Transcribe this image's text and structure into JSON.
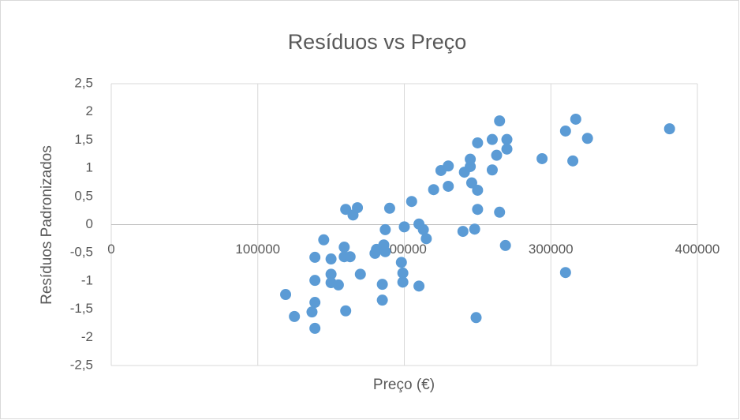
{
  "chart_data": {
    "type": "scatter",
    "title": "Resíduos vs Preço",
    "xlabel": "Preço (€)",
    "ylabel": "Resíduos Padronizados",
    "color": "#5b9bd5",
    "grid": true,
    "x": [
      119000,
      125000,
      137000,
      139000,
      139000,
      139000,
      139000,
      145000,
      150000,
      150000,
      150000,
      155000,
      159000,
      159000,
      160000,
      160000,
      163000,
      165000,
      168000,
      170000,
      180000,
      181000,
      185000,
      185000,
      186000,
      187000,
      187000,
      190000,
      198000,
      199000,
      199000,
      200000,
      205000,
      210000,
      210000,
      213000,
      215000,
      220000,
      225000,
      230000,
      230000,
      240000,
      241000,
      245000,
      245000,
      246000,
      248000,
      249000,
      250000,
      250000,
      250000,
      260000,
      260000,
      263000,
      265000,
      265000,
      269000,
      270000,
      270000,
      294000,
      310000,
      310000,
      315000,
      317000,
      325000,
      381000
    ],
    "y": [
      -1.24,
      -1.63,
      -1.55,
      -1.84,
      -1.38,
      -0.99,
      -0.58,
      -0.27,
      -0.61,
      -0.88,
      -1.03,
      -1.07,
      -0.4,
      -0.57,
      -1.53,
      0.27,
      -0.57,
      0.17,
      0.3,
      -0.88,
      -0.51,
      -0.44,
      -1.34,
      -1.06,
      -0.36,
      -0.48,
      -0.09,
      0.29,
      -0.67,
      -0.86,
      -1.02,
      -0.04,
      0.41,
      0.01,
      -1.09,
      -0.09,
      -0.25,
      0.62,
      0.96,
      1.04,
      0.68,
      -0.12,
      0.93,
      1.03,
      1.16,
      0.74,
      -0.08,
      -1.65,
      0.61,
      0.27,
      1.45,
      0.97,
      1.51,
      1.23,
      0.22,
      1.84,
      -0.37,
      1.51,
      1.34,
      1.17,
      1.66,
      -0.85,
      1.13,
      1.87,
      1.53,
      1.7
    ],
    "xlim": [
      0,
      400000
    ],
    "xticks": [
      0,
      100000,
      200000,
      300000,
      400000
    ],
    "ylim": [
      -2.5,
      2.5
    ],
    "yticks": [
      {
        "value": -2.5,
        "label": "-2,5"
      },
      {
        "value": -2,
        "label": "-2"
      },
      {
        "value": -1.5,
        "label": "-1,5"
      },
      {
        "value": -1,
        "label": "-1"
      },
      {
        "value": -0.5,
        "label": "-0,5"
      },
      {
        "value": 0,
        "label": "0"
      },
      {
        "value": 0.5,
        "label": "0,5"
      },
      {
        "value": 1,
        "label": "1"
      },
      {
        "value": 1.5,
        "label": "1,5"
      },
      {
        "value": 2,
        "label": "2"
      },
      {
        "value": 2.5,
        "label": "2,5"
      }
    ]
  }
}
